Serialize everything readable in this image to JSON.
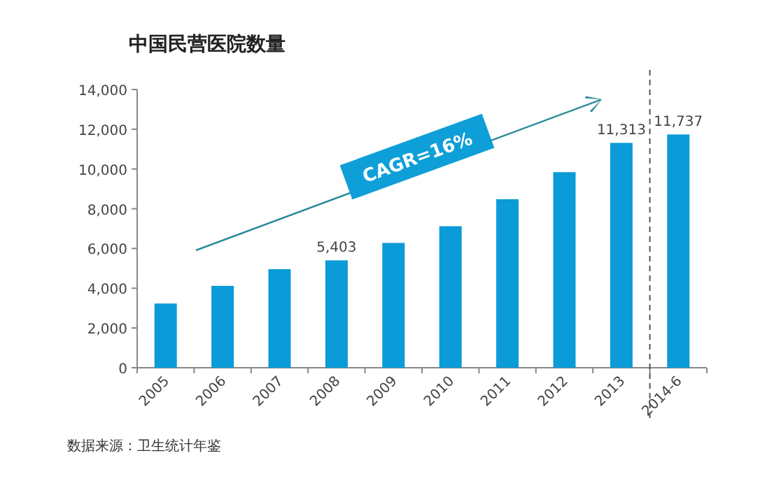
{
  "chart_data": {
    "type": "bar",
    "title": "中国民营医院数量",
    "categories": [
      "2005",
      "2006",
      "2007",
      "2008",
      "2009",
      "2010",
      "2011",
      "2012",
      "2013",
      "2014-6"
    ],
    "values": [
      3230,
      4120,
      4960,
      5403,
      6280,
      7120,
      8480,
      9840,
      11313,
      11737
    ],
    "value_labels": [
      null,
      null,
      null,
      "5,403",
      null,
      null,
      null,
      null,
      "11,313",
      "11,737"
    ],
    "color": "#0a9bd8",
    "ylim": [
      0,
      14000
    ],
    "yticks": [
      {
        "value": 0,
        "label": "0"
      },
      {
        "value": 2000,
        "label": "2,000"
      },
      {
        "value": 4000,
        "label": "4,000"
      },
      {
        "value": 6000,
        "label": "6,000"
      },
      {
        "value": 8000,
        "label": "8,000"
      },
      {
        "value": 10000,
        "label": "10,000"
      },
      {
        "value": 12000,
        "label": "12,000"
      },
      {
        "value": 14000,
        "label": "14,000"
      }
    ],
    "annotations": [
      "CAGR=16%",
      "数据来源：卫生统计年鉴"
    ],
    "grid": false
  }
}
